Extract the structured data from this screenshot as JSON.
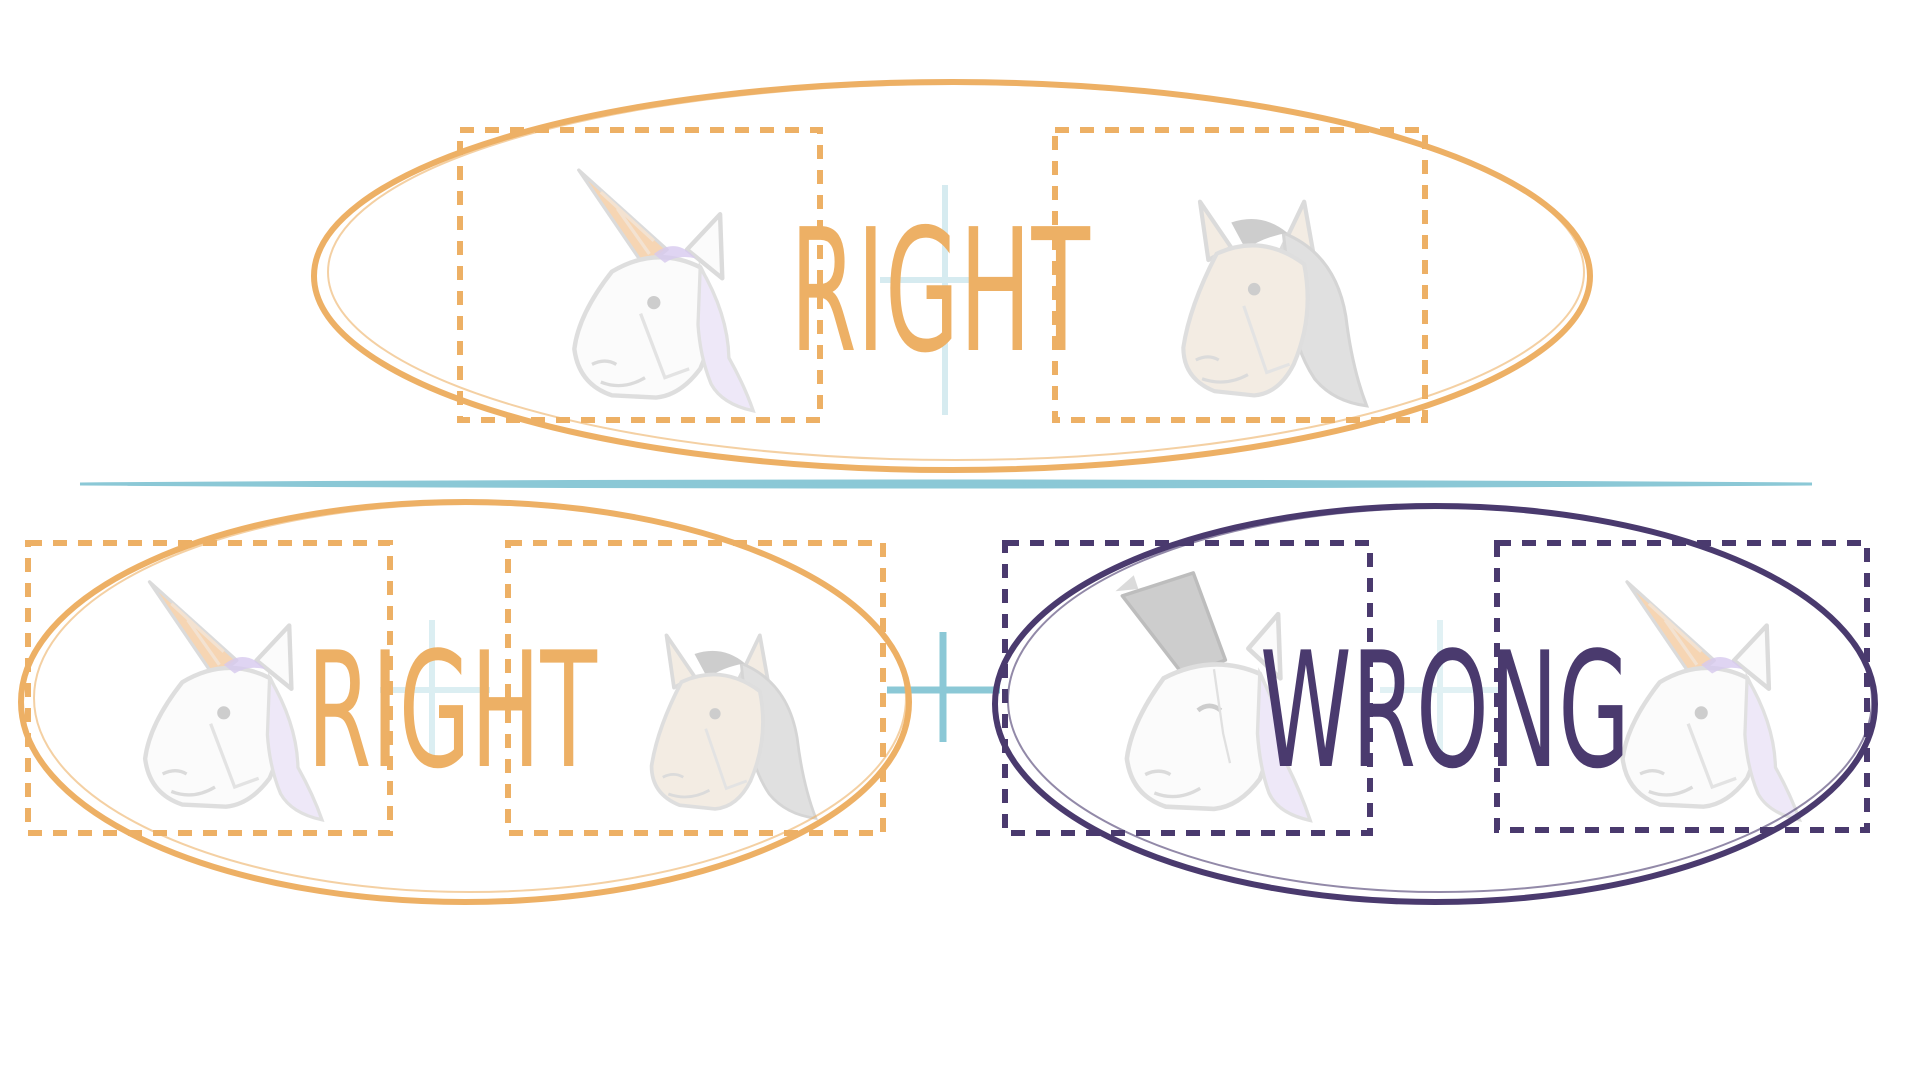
{
  "labels": {
    "top": "RIGHT",
    "bottom_left": "RIGHT",
    "bottom_right": "WRONG"
  },
  "colors": {
    "right": "#EDB065",
    "wrong": "#4A3A6E",
    "divider": "#8BC8D6",
    "unicorn_horn": "#F3C79A",
    "unicorn_mane": "#C9B8E8",
    "horse_face": "#EFE6DA",
    "horse_mane": "#8A8A8A",
    "faint_line": "#D9D9D9"
  },
  "icons": {
    "top_left": "unicorn-icon",
    "top_right": "horse-icon",
    "bottom_left_a": "unicorn-icon",
    "bottom_left_b": "horse-icon",
    "bottom_right_a": "horse-with-cone-icon",
    "bottom_right_b": "unicorn-icon"
  }
}
